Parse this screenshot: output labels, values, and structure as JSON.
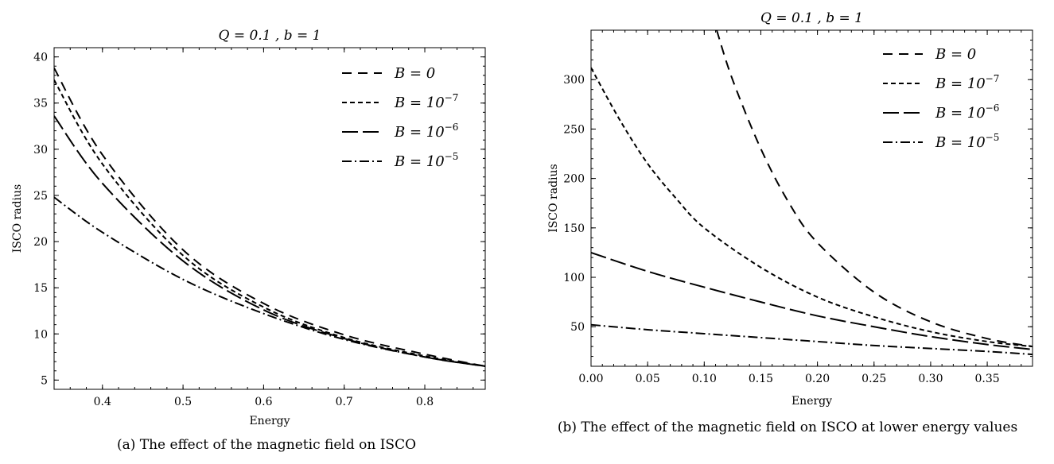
{
  "figure": {
    "captions": {
      "a": "(a) The effect of the magnetic field on ISCO",
      "b": "(b) The effect of the magnetic field on ISCO at lower energy values"
    }
  },
  "chart_data": [
    {
      "type": "line",
      "title": "Q = 0.1 , b = 1",
      "xlabel": "Energy",
      "ylabel": "ISCO radius",
      "xlim": [
        0.34,
        0.875
      ],
      "ylim": [
        4,
        41
      ],
      "xticks": [
        0.4,
        0.5,
        0.6,
        0.7,
        0.8
      ],
      "xtick_labels": [
        "0.4",
        "0.5",
        "0.6",
        "0.7",
        "0.8"
      ],
      "yticks": [
        5,
        10,
        15,
        20,
        25,
        30,
        35,
        40
      ],
      "ytick_labels": [
        "5",
        "10",
        "15",
        "20",
        "25",
        "30",
        "35",
        "40"
      ],
      "legend_position": "top-right",
      "grid": false,
      "series": [
        {
          "name": "B = 0",
          "legend_base": "B = 0",
          "legend_exp": "",
          "dash": "12,8",
          "x": [
            0.34,
            0.4,
            0.5,
            0.6,
            0.7,
            0.8,
            0.875
          ],
          "y": [
            38.8,
            29.4,
            19.1,
            13.3,
            9.9,
            7.8,
            6.5
          ]
        },
        {
          "name": "B = 10^-7",
          "legend_base": "B = 10",
          "legend_exp": "−7",
          "dash": "6,4",
          "x": [
            0.34,
            0.4,
            0.5,
            0.6,
            0.7,
            0.8,
            0.875
          ],
          "y": [
            37.5,
            28.4,
            18.5,
            12.9,
            9.6,
            7.6,
            6.5
          ]
        },
        {
          "name": "B = 10^-6",
          "legend_base": "B = 10",
          "legend_exp": "−6",
          "dash": "20,6",
          "x": [
            0.34,
            0.4,
            0.5,
            0.6,
            0.7,
            0.8,
            0.875
          ],
          "y": [
            33.6,
            26.3,
            17.9,
            12.6,
            9.5,
            7.5,
            6.5
          ]
        },
        {
          "name": "B = 10^-5",
          "legend_base": "B = 10",
          "legend_exp": "−5",
          "dash": "12,4,2,4",
          "x": [
            0.34,
            0.4,
            0.5,
            0.6,
            0.7,
            0.8,
            0.875
          ],
          "y": [
            24.8,
            21.0,
            15.9,
            12.2,
            9.4,
            7.5,
            6.5
          ]
        }
      ]
    },
    {
      "type": "line",
      "title": "Q = 0.1 , b = 1",
      "xlabel": "Energy",
      "ylabel": "ISCO radius",
      "xlim": [
        0.0,
        0.39
      ],
      "ylim": [
        10,
        350
      ],
      "xticks": [
        0.0,
        0.05,
        0.1,
        0.15,
        0.2,
        0.25,
        0.3,
        0.35
      ],
      "xtick_labels": [
        "0.00",
        "0.05",
        "0.10",
        "0.15",
        "0.20",
        "0.25",
        "0.30",
        "0.35"
      ],
      "yticks": [
        50,
        100,
        150,
        200,
        250,
        300
      ],
      "ytick_labels": [
        "50",
        "100",
        "150",
        "200",
        "250",
        "300"
      ],
      "legend_position": "top-right",
      "grid": false,
      "series": [
        {
          "name": "B = 0",
          "legend_base": "B = 0",
          "legend_exp": "",
          "dash": "12,8",
          "x": [
            0.111,
            0.125,
            0.15,
            0.175,
            0.2,
            0.25,
            0.3,
            0.35,
            0.39
          ],
          "y": [
            350,
            300,
            230,
            175,
            135,
            85,
            55,
            38,
            30
          ]
        },
        {
          "name": "B = 10^-7",
          "legend_base": "B = 10",
          "legend_exp": "−7",
          "dash": "6,4",
          "x": [
            0.0,
            0.025,
            0.05,
            0.075,
            0.1,
            0.15,
            0.2,
            0.25,
            0.3,
            0.35,
            0.39
          ],
          "y": [
            312,
            260,
            215,
            180,
            150,
            110,
            80,
            60,
            45,
            35,
            30
          ]
        },
        {
          "name": "B = 10^-6",
          "legend_base": "B = 10",
          "legend_exp": "−6",
          "dash": "20,6",
          "x": [
            0.0,
            0.05,
            0.1,
            0.15,
            0.2,
            0.25,
            0.3,
            0.35,
            0.39
          ],
          "y": [
            125,
            106,
            90,
            75,
            61,
            50,
            40,
            32,
            27
          ]
        },
        {
          "name": "B = 10^-5",
          "legend_base": "B = 10",
          "legend_exp": "−5",
          "dash": "12,4,2,4",
          "x": [
            0.0,
            0.05,
            0.1,
            0.15,
            0.2,
            0.25,
            0.3,
            0.35,
            0.39
          ],
          "y": [
            52,
            47,
            43,
            39,
            35,
            31,
            28,
            25,
            22
          ]
        }
      ]
    }
  ]
}
